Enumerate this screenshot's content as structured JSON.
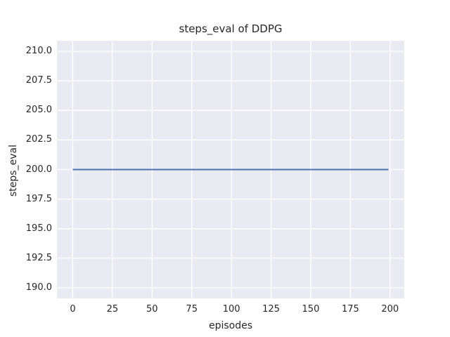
{
  "chart_data": {
    "type": "line",
    "title": "steps_eval of DDPG",
    "xlabel": "episodes",
    "ylabel": "steps_eval",
    "xlim": [
      -9.95,
      208.95
    ],
    "ylim": [
      189.1,
      210.9
    ],
    "xticks": [
      {
        "value": 0,
        "label": "0"
      },
      {
        "value": 25,
        "label": "25"
      },
      {
        "value": 50,
        "label": "50"
      },
      {
        "value": 75,
        "label": "75"
      },
      {
        "value": 100,
        "label": "100"
      },
      {
        "value": 125,
        "label": "125"
      },
      {
        "value": 150,
        "label": "150"
      },
      {
        "value": 175,
        "label": "175"
      },
      {
        "value": 200,
        "label": "200"
      }
    ],
    "yticks": [
      {
        "value": 190.0,
        "label": "190.0"
      },
      {
        "value": 192.5,
        "label": "192.5"
      },
      {
        "value": 195.0,
        "label": "195.0"
      },
      {
        "value": 197.5,
        "label": "197.5"
      },
      {
        "value": 200.0,
        "label": "200.0"
      },
      {
        "value": 202.5,
        "label": "202.5"
      },
      {
        "value": 205.0,
        "label": "205.0"
      },
      {
        "value": 207.5,
        "label": "207.5"
      },
      {
        "value": 210.0,
        "label": "210.0"
      }
    ],
    "grid": true,
    "legend": "none",
    "style": {
      "plot_background": "#eaeaf2",
      "gridline_color": "#ffffff",
      "text_color": "#262626",
      "line_color": "#4c72b0",
      "line_width": 2
    },
    "series": [
      {
        "name": "DDPG steps_eval",
        "color": "#4c72b0",
        "description": "constant value 200 for every episode from 0 to 199",
        "x": [
          0,
          199
        ],
        "y": [
          200,
          200
        ]
      }
    ]
  }
}
